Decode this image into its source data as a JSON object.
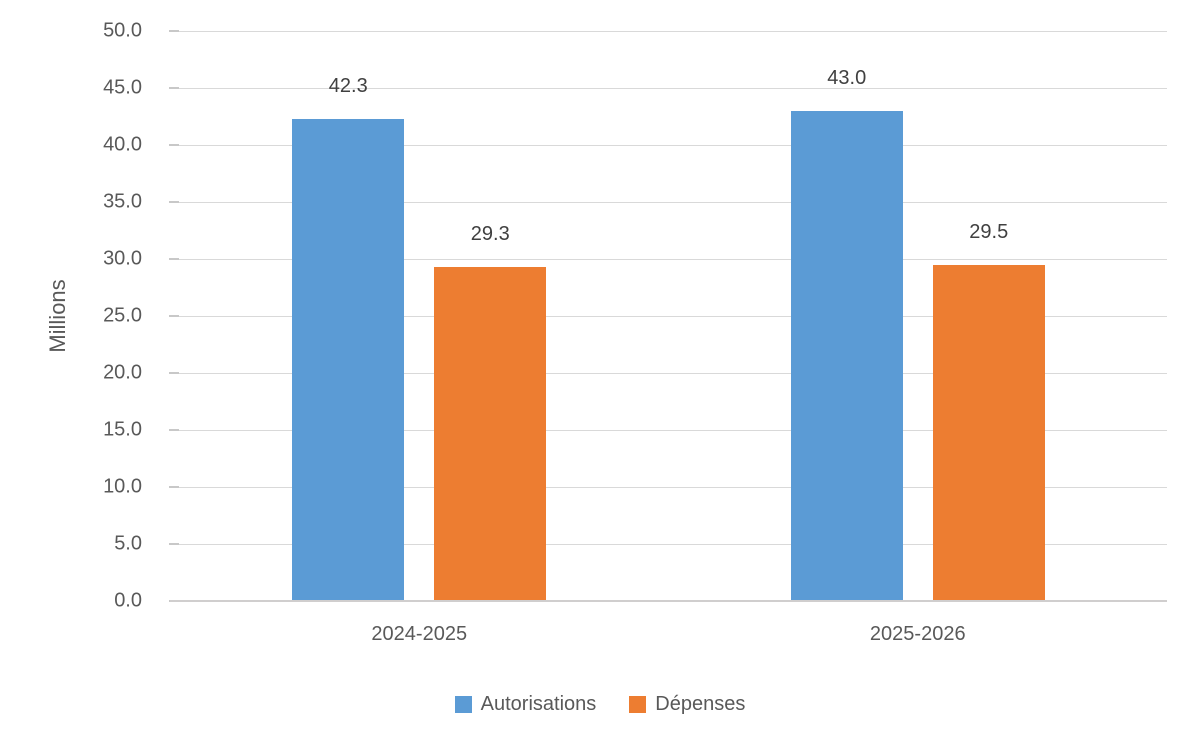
{
  "chart_data": {
    "type": "bar",
    "title": "",
    "ylabel": "Millions",
    "xlabel": "",
    "categories": [
      "2024-2025",
      "2025-2026"
    ],
    "series": [
      {
        "name": "Autorisations",
        "color": "#5B9BD5",
        "values": [
          42.3,
          43.0
        ]
      },
      {
        "name": "Dépenses",
        "color": "#ED7D31",
        "values": [
          29.3,
          29.5
        ]
      }
    ],
    "ylim": [
      0,
      50
    ],
    "ystep": 5,
    "yticks": [
      "50.0",
      "45.0",
      "40.0",
      "35.0",
      "30.0",
      "25.0",
      "20.0",
      "15.0",
      "10.0",
      "5.0",
      "0.0"
    ],
    "grid": true,
    "data_labels_shown": true,
    "legend_position": "bottom"
  },
  "colors": {
    "background": "#ffffff",
    "gridline": "#d9d9d9",
    "axis_line": "#d0cece",
    "tick_text": "#595959",
    "data_label_text": "#404040",
    "series_blue": "#5B9BD5",
    "series_orange": "#ED7D31"
  }
}
